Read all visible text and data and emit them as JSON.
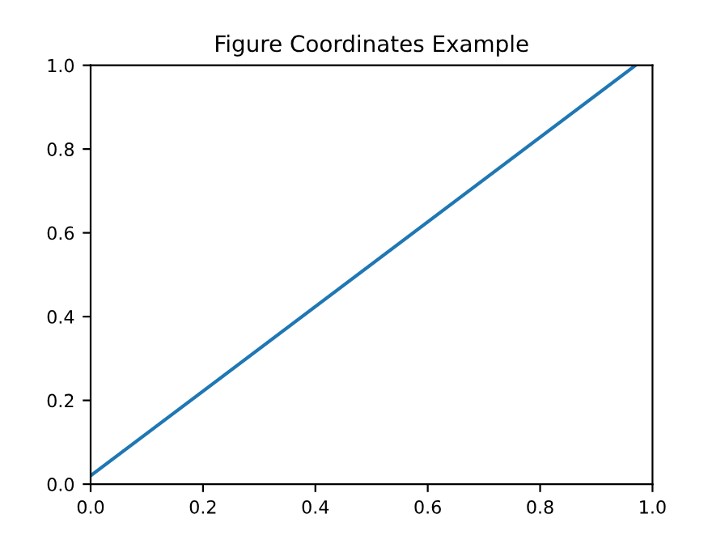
{
  "chart_data": {
    "type": "line",
    "title": "Figure Coordinates Example",
    "x": [
      0,
      0.97
    ],
    "series": [
      {
        "color": "#1f77b4",
        "values": [
          0.02,
          1.0
        ]
      }
    ],
    "xlim": [
      0,
      1
    ],
    "ylim": [
      0,
      1
    ],
    "xticks": [
      {
        "value": 0,
        "label": "0.0"
      },
      0.2,
      0.4,
      0.6,
      0.8,
      {
        "value": 1,
        "label": "1.0"
      }
    ],
    "yticks": [
      {
        "value": 0,
        "label": "0.0"
      },
      0.2,
      0.4,
      0.6,
      0.8,
      {
        "value": 1,
        "label": "1.0"
      }
    ],
    "grid": false,
    "legend": false,
    "marker": "none",
    "line_style": "solid"
  }
}
